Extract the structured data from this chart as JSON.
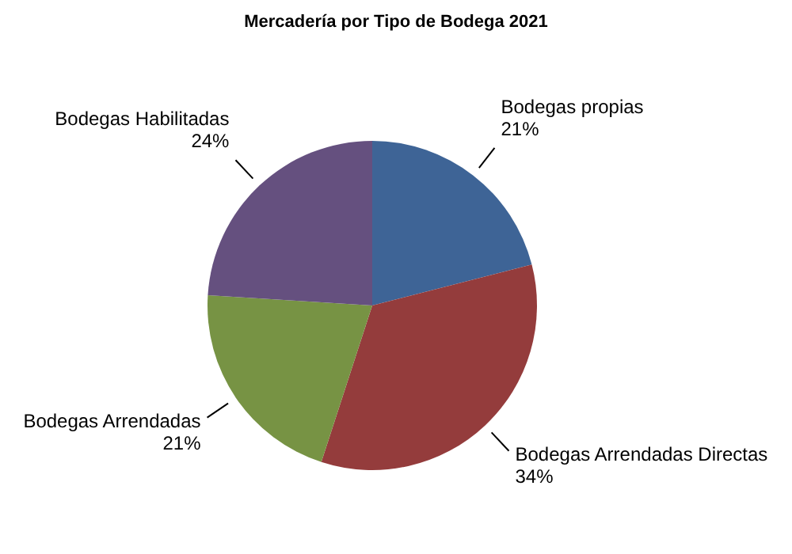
{
  "chart_data": {
    "type": "pie",
    "title": "Mercadería por Tipo de Bodega 2021",
    "categories": [
      "Bodegas propias",
      "Bodegas Arrendadas Directas",
      "Bodegas Arrendadas",
      "Bodegas Habilitadas"
    ],
    "values": [
      21,
      34,
      21,
      24
    ],
    "value_labels": [
      "21%",
      "34%",
      "21%",
      "24%"
    ],
    "colors": [
      "#3e6496",
      "#943c3c",
      "#779344",
      "#65507f"
    ],
    "legend": false
  }
}
